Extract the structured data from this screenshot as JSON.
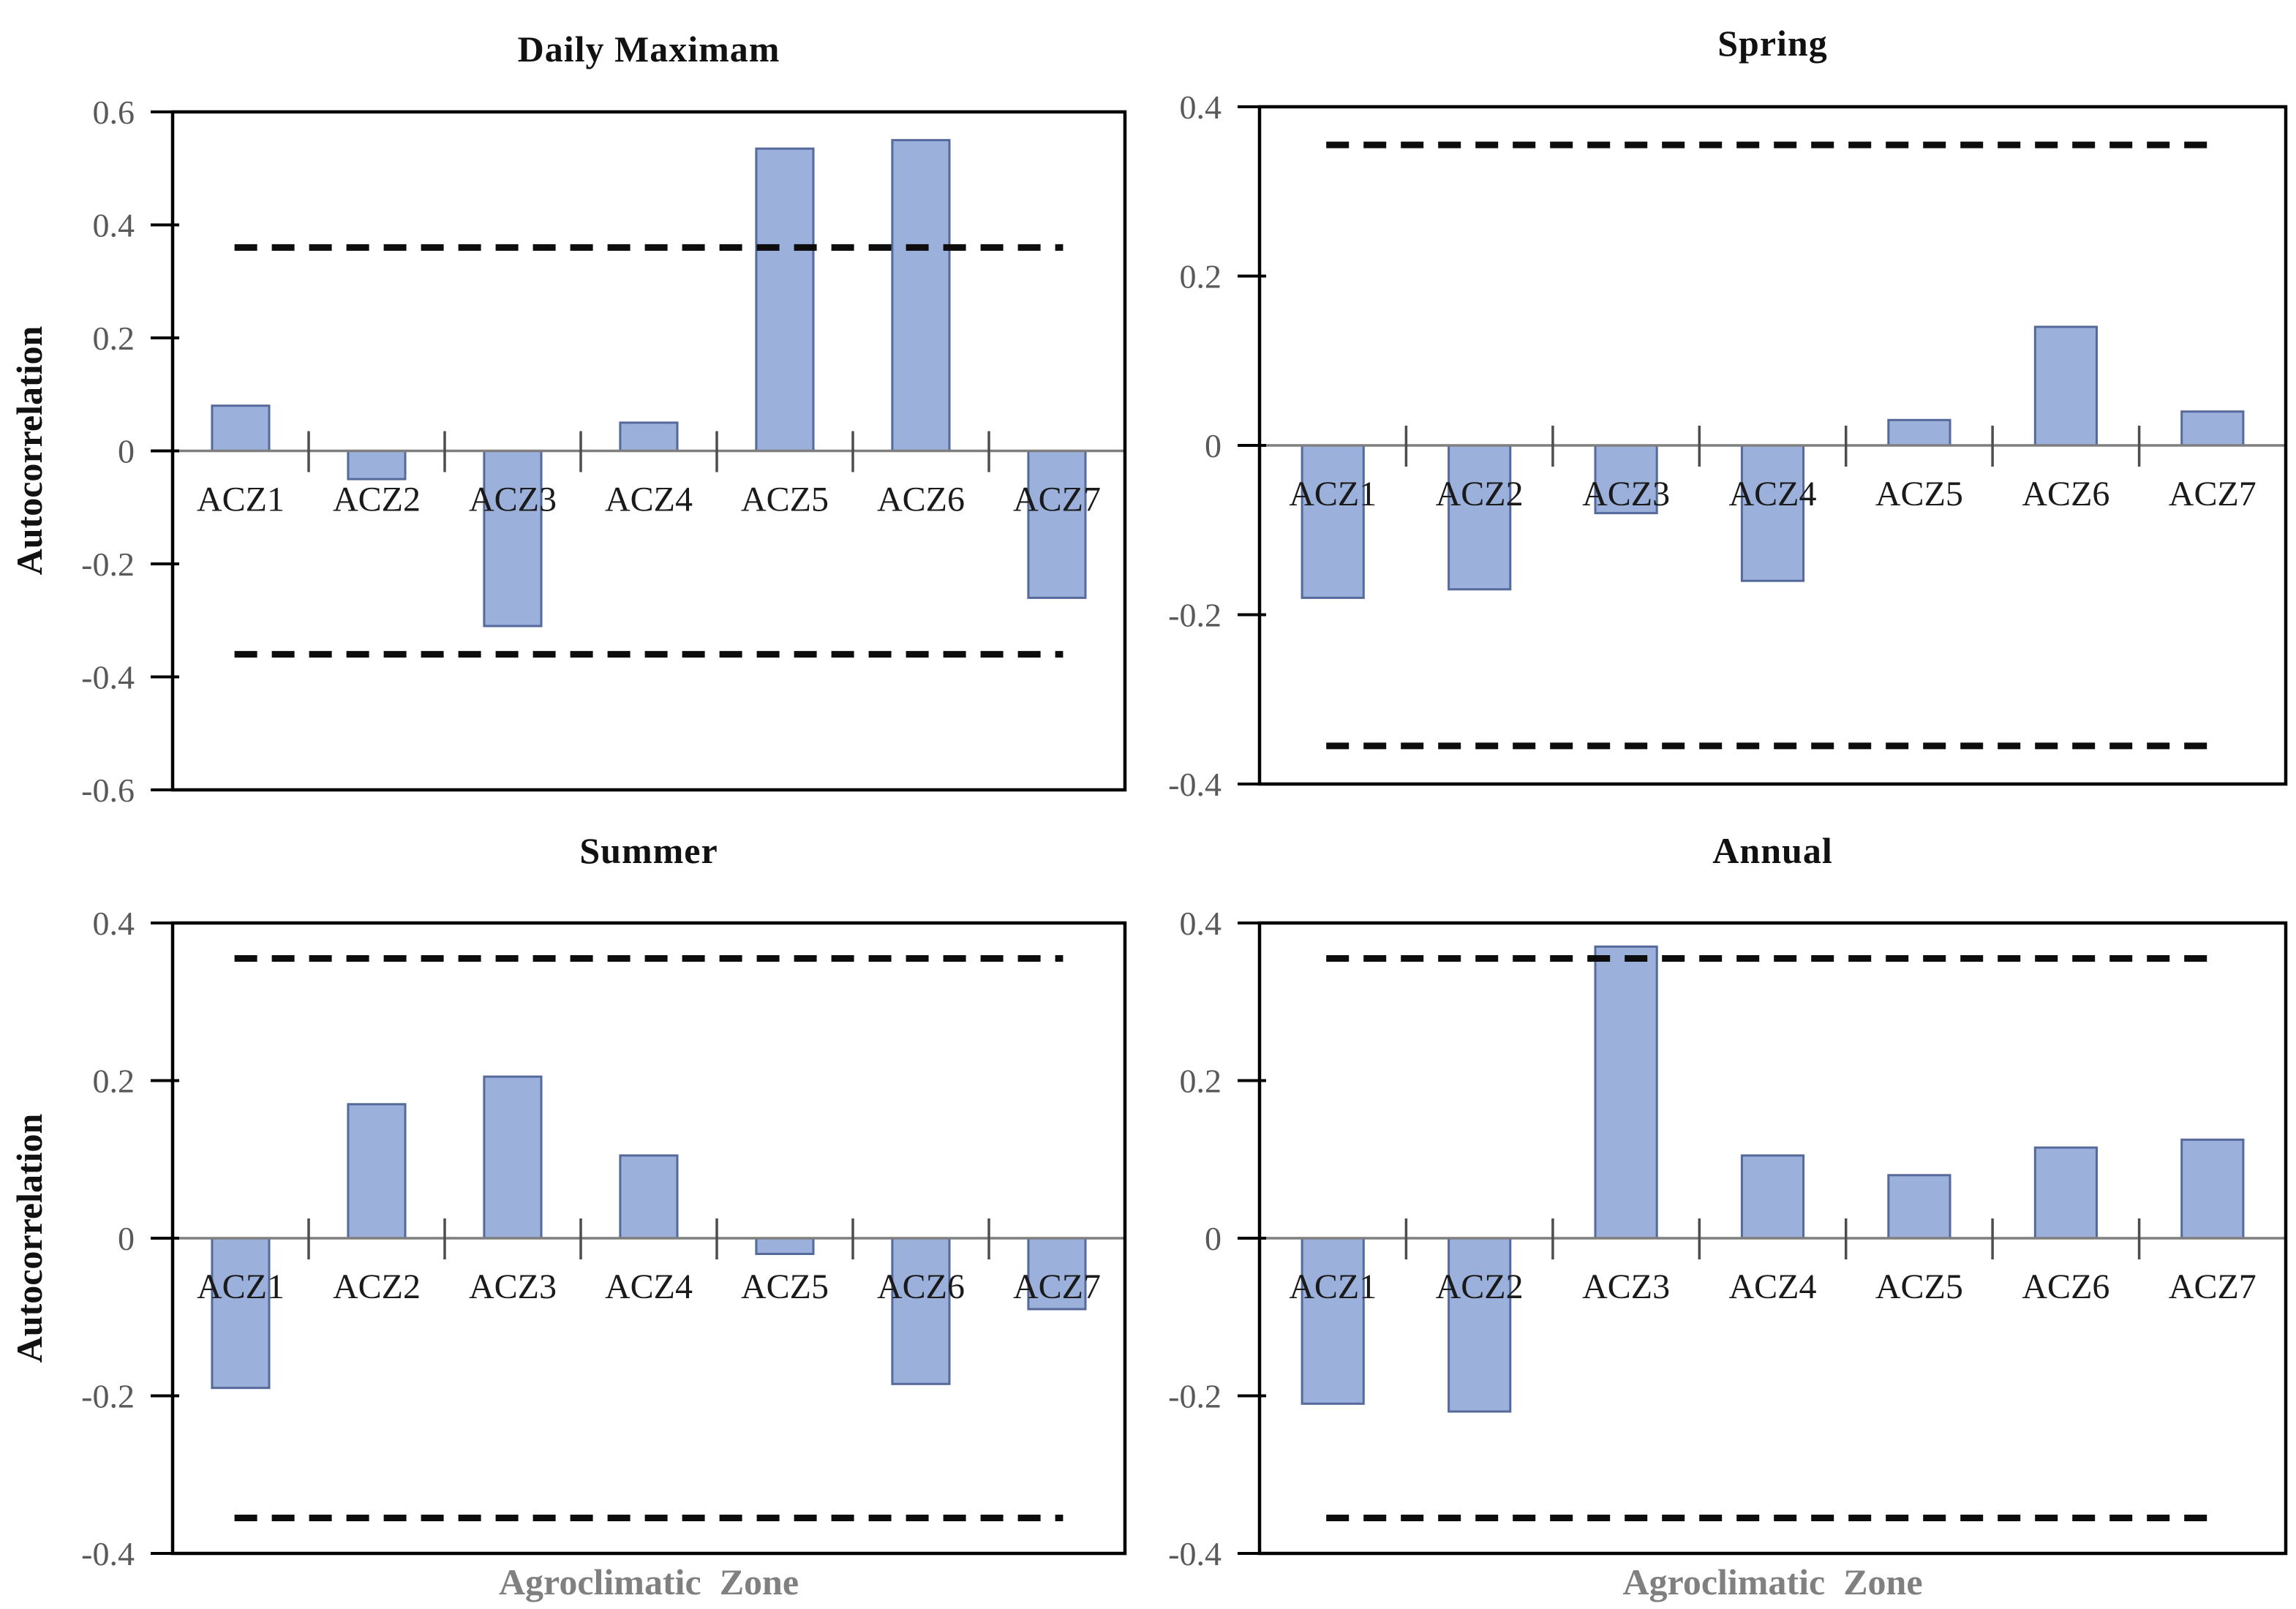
{
  "figure": {
    "background": "#FFFFFF",
    "styles": {
      "bar_fill": "#9BB1DB",
      "bar_border": "#56699B",
      "frame_color": "#000000",
      "zero_line_color": "#7F7F7F",
      "tick_color": "#4D4D4D",
      "tick_label_color": "#595959",
      "category_label_color": "#1A1A1A",
      "title_color": "#111111",
      "xlabel_color": "#808080",
      "dashed_color": "#0D0D0D"
    }
  },
  "chart_data": [
    {
      "type": "bar",
      "title": "Daily Maximam",
      "ylabel": "Autocorrelation",
      "xlabel": "",
      "categories": [
        "ACZ1",
        "ACZ2",
        "ACZ3",
        "ACZ4",
        "ACZ5",
        "ACZ6",
        "ACZ7"
      ],
      "values": [
        0.08,
        -0.05,
        -0.31,
        0.05,
        0.535,
        0.55,
        -0.26
      ],
      "ylim": [
        -0.6,
        0.6
      ],
      "yticks": [
        0.6,
        0.4,
        0.2,
        0,
        -0.2,
        -0.4,
        -0.6
      ],
      "ytick_labels": [
        "0.6",
        "0.4",
        "0.2",
        "0",
        "-0.2",
        "-0.4",
        "-0.6"
      ],
      "significance_bounds": [
        0.36,
        -0.36
      ],
      "grid": false,
      "legend": false
    },
    {
      "type": "bar",
      "title": "Spring",
      "ylabel": "",
      "xlabel": "",
      "categories": [
        "ACZ1",
        "ACZ2",
        "ACZ3",
        "ACZ4",
        "ACZ5",
        "ACZ6",
        "ACZ7"
      ],
      "values": [
        -0.18,
        -0.17,
        -0.08,
        -0.16,
        0.03,
        0.14,
        0.04
      ],
      "ylim": [
        -0.4,
        0.4
      ],
      "yticks": [
        0.4,
        0.2,
        0,
        -0.2,
        -0.4
      ],
      "ytick_labels": [
        "0.4",
        "0.2",
        "0",
        "-0.2",
        "-0.4"
      ],
      "significance_bounds": [
        0.355,
        -0.355
      ],
      "grid": false,
      "legend": false
    },
    {
      "type": "bar",
      "title": "Summer",
      "ylabel": "Autocorrelation",
      "xlabel": "Agroclimatic  Zone",
      "categories": [
        "ACZ1",
        "ACZ2",
        "ACZ3",
        "ACZ4",
        "ACZ5",
        "ACZ6",
        "ACZ7"
      ],
      "values": [
        -0.19,
        0.17,
        0.205,
        0.105,
        -0.02,
        -0.185,
        -0.09
      ],
      "ylim": [
        -0.4,
        0.4
      ],
      "yticks": [
        0.4,
        0.2,
        0,
        -0.2,
        -0.4
      ],
      "ytick_labels": [
        "0.4",
        "0.2",
        "0",
        "-0.2",
        "-0.4"
      ],
      "significance_bounds": [
        0.355,
        -0.355
      ],
      "grid": false,
      "legend": false
    },
    {
      "type": "bar",
      "title": "Annual",
      "ylabel": "",
      "xlabel": "Agroclimatic  Zone",
      "categories": [
        "ACZ1",
        "ACZ2",
        "ACZ3",
        "ACZ4",
        "ACZ5",
        "ACZ6",
        "ACZ7"
      ],
      "values": [
        -0.21,
        -0.22,
        0.37,
        0.105,
        0.08,
        0.115,
        0.125
      ],
      "ylim": [
        -0.4,
        0.4
      ],
      "yticks": [
        0.4,
        0.2,
        0,
        -0.2,
        -0.4
      ],
      "ytick_labels": [
        "0.4",
        "0.2",
        "0",
        "-0.2",
        "-0.4"
      ],
      "significance_bounds": [
        0.355,
        -0.355
      ],
      "grid": false,
      "legend": false
    }
  ]
}
